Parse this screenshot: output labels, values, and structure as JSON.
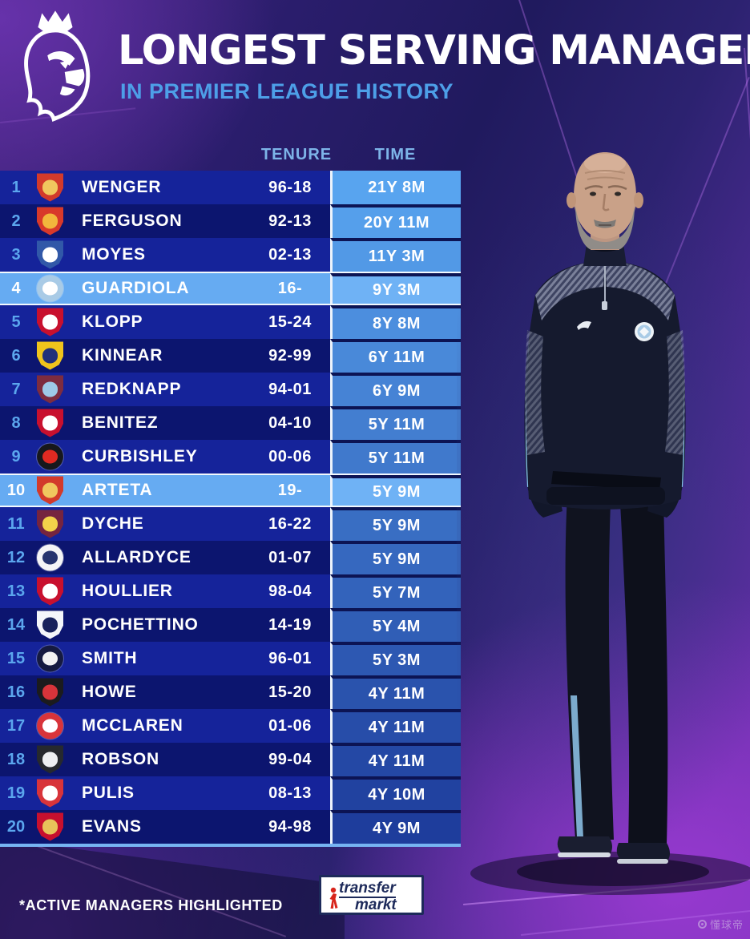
{
  "chart_data": {
    "type": "table",
    "title": "LONGEST SERVING MANAGERS",
    "subtitle": "IN PREMIER LEAGUE HISTORY",
    "columns": [
      "TENURE",
      "TIME"
    ],
    "note": "*ACTIVE MANAGERS HIGHLIGHTED",
    "highlighted_meaning": "active managers",
    "rows": [
      {
        "rank": "1",
        "club": "Arsenal",
        "manager": "WENGER",
        "tenure": "96-18",
        "time": "21Y 8M",
        "active": false,
        "badge": {
          "shape": "shield",
          "c1": "#d23a2b",
          "c2": "#f0c75e"
        }
      },
      {
        "rank": "2",
        "club": "Manchester United",
        "manager": "FERGUSON",
        "tenure": "92-13",
        "time": "20Y 11M",
        "active": false,
        "badge": {
          "shape": "shield",
          "c1": "#d8392a",
          "c2": "#f2b73c"
        }
      },
      {
        "rank": "3",
        "club": "Everton",
        "manager": "MOYES",
        "tenure": "02-13",
        "time": "11Y 3M",
        "active": false,
        "badge": {
          "shape": "shield",
          "c1": "#3158a8",
          "c2": "#ffffff"
        }
      },
      {
        "rank": "4",
        "club": "Manchester City",
        "manager": "GUARDIOLA",
        "tenure": "16-",
        "time": "9Y 3M",
        "active": true,
        "badge": {
          "shape": "circle",
          "c1": "#a9cbe6",
          "c2": "#ffffff"
        }
      },
      {
        "rank": "5",
        "club": "Liverpool",
        "manager": "KLOPP",
        "tenure": "15-24",
        "time": "8Y 8M",
        "active": false,
        "badge": {
          "shape": "shield",
          "c1": "#c8102e",
          "c2": "#ffffff"
        }
      },
      {
        "rank": "6",
        "club": "Wimbledon",
        "manager": "KINNEAR",
        "tenure": "92-99",
        "time": "6Y 11M",
        "active": false,
        "badge": {
          "shape": "shield",
          "c1": "#f0c41c",
          "c2": "#22307a"
        }
      },
      {
        "rank": "7",
        "club": "West Ham United",
        "manager": "REDKNAPP",
        "tenure": "94-01",
        "time": "6Y 9M",
        "active": false,
        "badge": {
          "shape": "shield",
          "c1": "#7d2c3f",
          "c2": "#9ecae8"
        }
      },
      {
        "rank": "8",
        "club": "Liverpool",
        "manager": "BENITEZ",
        "tenure": "04-10",
        "time": "5Y 11M",
        "active": false,
        "badge": {
          "shape": "shield",
          "c1": "#c8102e",
          "c2": "#ffffff"
        }
      },
      {
        "rank": "9",
        "club": "Charlton Athletic",
        "manager": "CURBISHLEY",
        "tenure": "00-06",
        "time": "5Y 11M",
        "active": false,
        "badge": {
          "shape": "circle",
          "c1": "#17181c",
          "c2": "#e02a22"
        }
      },
      {
        "rank": "10",
        "club": "Arsenal",
        "manager": "ARTETA",
        "tenure": "19-",
        "time": "5Y 9M",
        "active": true,
        "badge": {
          "shape": "shield",
          "c1": "#d23a2b",
          "c2": "#f0c75e"
        }
      },
      {
        "rank": "11",
        "club": "Burnley",
        "manager": "DYCHE",
        "tenure": "16-22",
        "time": "5Y 9M",
        "active": false,
        "badge": {
          "shape": "shield",
          "c1": "#75243f",
          "c2": "#f2d24a"
        }
      },
      {
        "rank": "12",
        "club": "Bolton Wanderers",
        "manager": "ALLARDYCE",
        "tenure": "01-07",
        "time": "5Y 9M",
        "active": false,
        "badge": {
          "shape": "circle",
          "c1": "#f4f4f6",
          "c2": "#25336e"
        }
      },
      {
        "rank": "13",
        "club": "Liverpool",
        "manager": "HOULLIER",
        "tenure": "98-04",
        "time": "5Y 7M",
        "active": false,
        "badge": {
          "shape": "shield",
          "c1": "#c8102e",
          "c2": "#ffffff"
        }
      },
      {
        "rank": "14",
        "club": "Tottenham Hotspur",
        "manager": "POCHETTINO",
        "tenure": "14-19",
        "time": "5Y 4M",
        "active": false,
        "badge": {
          "shape": "shield",
          "c1": "#f4f6fa",
          "c2": "#18225c"
        }
      },
      {
        "rank": "15",
        "club": "Derby County",
        "manager": "SMITH",
        "tenure": "96-01",
        "time": "5Y 3M",
        "active": false,
        "badge": {
          "shape": "circle",
          "c1": "#151a40",
          "c2": "#f2f2f2"
        }
      },
      {
        "rank": "16",
        "club": "AFC Bournemouth",
        "manager": "HOWE",
        "tenure": "15-20",
        "time": "4Y 11M",
        "active": false,
        "badge": {
          "shape": "shield",
          "c1": "#1b1b1d",
          "c2": "#d8343a"
        }
      },
      {
        "rank": "17",
        "club": "Middlesbrough",
        "manager": "MCCLAREN",
        "tenure": "01-06",
        "time": "4Y 11M",
        "active": false,
        "badge": {
          "shape": "circle",
          "c1": "#d8343a",
          "c2": "#ffffff"
        }
      },
      {
        "rank": "18",
        "club": "Newcastle United",
        "manager": "ROBSON",
        "tenure": "99-04",
        "time": "4Y 11M",
        "active": false,
        "badge": {
          "shape": "shield",
          "c1": "#26292e",
          "c2": "#eef0f2"
        }
      },
      {
        "rank": "19",
        "club": "Stoke City",
        "manager": "PULIS",
        "tenure": "08-13",
        "time": "4Y 10M",
        "active": false,
        "badge": {
          "shape": "shield",
          "c1": "#d8343a",
          "c2": "#ffffff"
        }
      },
      {
        "rank": "20",
        "club": "Liverpool",
        "manager": "EVANS",
        "tenure": "94-98",
        "time": "4Y 9M",
        "active": false,
        "badge": {
          "shape": "shield",
          "c1": "#c8102e",
          "c2": "#e8c35a"
        }
      }
    ]
  },
  "footer": {
    "note": "*ACTIVE MANAGERS HIGHLIGHTED",
    "brand_line1": "transfer",
    "brand_line2": "markt"
  },
  "watermark": {
    "text": "懂球帝"
  },
  "icons": {
    "pl_logo": "premier-league-lion",
    "brand_player": "red-footballer-icon",
    "watermark_icon": "gear-circle-icon"
  },
  "colors": {
    "row_odd": "#15239a",
    "row_even": "#0c156f",
    "highlight_row": "#66abf2",
    "highlight_time": "#6fb2f5",
    "time_top": "#58a4ef",
    "time_bottom": "#1e3d9c",
    "time_separator": "#0c1454",
    "rank_blue": "#5ba6ee",
    "rank_active": "#ffffff",
    "subtitle_blue": "#4d9fe8",
    "header_label_blue": "#7db4e8",
    "table_bottom_border": "#76b4f2",
    "brand_navy": "#1d2a5a",
    "brand_red": "#d8251c"
  }
}
